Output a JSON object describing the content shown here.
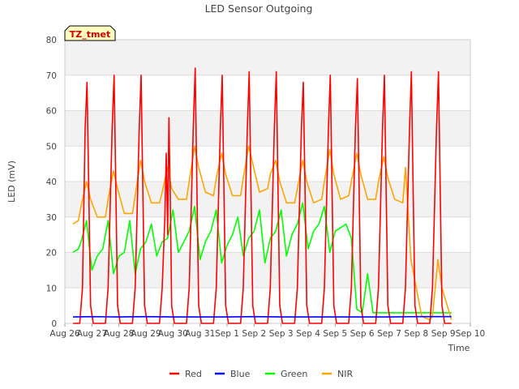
{
  "chart_data": {
    "type": "line",
    "title": "LED Sensor Outgoing",
    "xlabel": "Time",
    "ylabel": "LED (mV)",
    "ylim": [
      0,
      80
    ],
    "yticks": [
      0,
      10,
      20,
      30,
      40,
      50,
      60,
      70,
      80
    ],
    "xlim": [
      0,
      15
    ],
    "xticks": [
      {
        "value": 0,
        "label": "Aug 26"
      },
      {
        "value": 1,
        "label": "Aug 27"
      },
      {
        "value": 2,
        "label": "Aug 28"
      },
      {
        "value": 3,
        "label": "Aug 29"
      },
      {
        "value": 4,
        "label": "Aug 30"
      },
      {
        "value": 5,
        "label": "Aug 31"
      },
      {
        "value": 6,
        "label": "Sep 1"
      },
      {
        "value": 7,
        "label": "Sep 2"
      },
      {
        "value": 8,
        "label": "Sep 3"
      },
      {
        "value": 9,
        "label": "Sep 4"
      },
      {
        "value": 10,
        "label": "Sep 5"
      },
      {
        "value": 11,
        "label": "Sep 6"
      },
      {
        "value": 12,
        "label": "Sep 7"
      },
      {
        "value": 13,
        "label": "Sep 8"
      },
      {
        "value": 14,
        "label": "Sep 9"
      },
      {
        "value": 15,
        "label": "Sep 10"
      }
    ],
    "annotation": "TZ_tmet",
    "legend_position": "bottom-center",
    "series": [
      {
        "name": "Red",
        "color": "#ff0000",
        "x": [
          0.3,
          0.55,
          0.65,
          0.75,
          0.82,
          0.88,
          0.95,
          1.05,
          1.5,
          1.6,
          1.75,
          1.82,
          1.88,
          1.95,
          2.05,
          2.5,
          2.6,
          2.75,
          2.82,
          2.88,
          2.95,
          3.05,
          3.5,
          3.6,
          3.7,
          3.75,
          3.8,
          3.85,
          3.9,
          3.95,
          4.05,
          4.5,
          4.6,
          4.75,
          4.82,
          4.88,
          4.95,
          5.05,
          5.5,
          5.6,
          5.75,
          5.82,
          5.88,
          5.95,
          6.05,
          6.5,
          6.6,
          6.75,
          6.82,
          6.88,
          6.95,
          7.05,
          7.5,
          7.6,
          7.75,
          7.82,
          7.88,
          7.95,
          8.05,
          8.5,
          8.6,
          8.75,
          8.82,
          8.88,
          8.95,
          9.05,
          9.5,
          9.6,
          9.75,
          9.82,
          9.88,
          9.95,
          10.05,
          10.5,
          10.6,
          10.75,
          10.82,
          10.88,
          10.95,
          11.05,
          11.5,
          11.6,
          11.75,
          11.82,
          11.88,
          11.95,
          12.05,
          12.5,
          12.6,
          12.75,
          12.82,
          12.88,
          12.95,
          13.05,
          13.5,
          13.6,
          13.75,
          13.82,
          13.88,
          13.95,
          14.05,
          14.3
        ],
        "y": [
          0,
          0,
          10,
          55,
          68,
          40,
          5,
          0,
          0,
          10,
          55,
          70,
          40,
          5,
          0,
          0,
          10,
          55,
          70,
          40,
          5,
          0,
          0,
          10,
          30,
          48,
          25,
          58,
          35,
          5,
          0,
          0,
          10,
          55,
          72,
          40,
          5,
          0,
          0,
          10,
          55,
          70,
          40,
          5,
          0,
          0,
          10,
          55,
          71,
          40,
          5,
          0,
          0,
          10,
          55,
          71,
          40,
          5,
          0,
          0,
          10,
          55,
          68,
          40,
          5,
          0,
          0,
          10,
          55,
          70,
          40,
          5,
          0,
          0,
          10,
          55,
          69,
          40,
          5,
          0,
          0,
          10,
          55,
          70,
          40,
          5,
          0,
          0,
          10,
          55,
          71,
          40,
          5,
          0,
          0,
          10,
          55,
          71,
          40,
          5,
          0,
          0
        ]
      },
      {
        "name": "Blue",
        "color": "#0000ff",
        "x": [
          0.3,
          1.0,
          2.0,
          3.0,
          4.0,
          5.0,
          6.0,
          7.0,
          8.0,
          9.0,
          10.0,
          11.0,
          12.0,
          13.0,
          14.0,
          14.3
        ],
        "y": [
          1.8,
          1.9,
          1.8,
          1.9,
          1.8,
          1.8,
          1.8,
          1.9,
          1.8,
          1.8,
          1.8,
          1.8,
          1.8,
          1.9,
          1.9,
          1.9
        ]
      },
      {
        "name": "Green",
        "color": "#00ff00",
        "x": [
          0.3,
          0.5,
          0.6,
          0.8,
          1.0,
          1.2,
          1.4,
          1.6,
          1.8,
          2.0,
          2.2,
          2.4,
          2.6,
          2.8,
          3.0,
          3.2,
          3.4,
          3.6,
          3.8,
          4.0,
          4.2,
          4.4,
          4.6,
          4.8,
          5.0,
          5.2,
          5.4,
          5.6,
          5.8,
          6.0,
          6.2,
          6.4,
          6.6,
          6.8,
          7.0,
          7.2,
          7.4,
          7.6,
          7.8,
          8.0,
          8.2,
          8.4,
          8.6,
          8.8,
          9.0,
          9.2,
          9.4,
          9.6,
          9.8,
          10.0,
          10.2,
          10.4,
          10.6,
          10.8,
          11.0,
          11.2,
          11.4,
          11.6,
          11.8,
          12.0,
          12.2,
          12.4,
          12.6,
          12.8,
          13.0,
          13.2,
          13.4,
          13.6,
          13.8,
          14.0,
          14.3
        ],
        "y": [
          20,
          21,
          23,
          29,
          15,
          19,
          21,
          29,
          14,
          19,
          20,
          29,
          14,
          21,
          23,
          28,
          19,
          23,
          24,
          32,
          20,
          23,
          26,
          33,
          18,
          23,
          26,
          32,
          17,
          22,
          25,
          30,
          19,
          24,
          26,
          32,
          17,
          24,
          26,
          32,
          19,
          25,
          28,
          34,
          21,
          26,
          28,
          33,
          20,
          26,
          27,
          28,
          24,
          4,
          3,
          14,
          3,
          3,
          3,
          3,
          3,
          3,
          3,
          3,
          3,
          3,
          3,
          3,
          3,
          3,
          3
        ]
      },
      {
        "name": "NIR",
        "color": "#ffa500",
        "x": [
          0.3,
          0.5,
          0.6,
          0.8,
          0.95,
          1.2,
          1.5,
          1.6,
          1.8,
          1.95,
          2.2,
          2.5,
          2.6,
          2.8,
          2.95,
          3.2,
          3.5,
          3.6,
          3.8,
          3.95,
          4.2,
          4.5,
          4.6,
          4.8,
          4.95,
          5.2,
          5.5,
          5.6,
          5.8,
          5.95,
          6.2,
          6.5,
          6.6,
          6.8,
          6.95,
          7.2,
          7.5,
          7.6,
          7.8,
          7.95,
          8.2,
          8.5,
          8.6,
          8.8,
          8.95,
          9.2,
          9.5,
          9.6,
          9.8,
          9.95,
          10.2,
          10.5,
          10.6,
          10.8,
          10.95,
          11.2,
          11.5,
          11.6,
          11.8,
          11.95,
          12.2,
          12.5,
          12.6,
          12.8,
          12.95,
          13.2,
          13.5,
          13.6,
          13.8,
          13.95,
          14.3
        ],
        "y": [
          28,
          29,
          33,
          40,
          35,
          30,
          30,
          35,
          43,
          38,
          31,
          31,
          36,
          46,
          40,
          34,
          34,
          37,
          44,
          38,
          35,
          35,
          40,
          50,
          44,
          37,
          36,
          41,
          48,
          42,
          36,
          36,
          41,
          50,
          45,
          37,
          38,
          42,
          46,
          40,
          34,
          34,
          38,
          46,
          40,
          34,
          35,
          40,
          49,
          42,
          35,
          36,
          40,
          48,
          42,
          35,
          35,
          40,
          47,
          41,
          35,
          34,
          44,
          18,
          12,
          2,
          1,
          2,
          18,
          10,
          1
        ]
      }
    ]
  }
}
